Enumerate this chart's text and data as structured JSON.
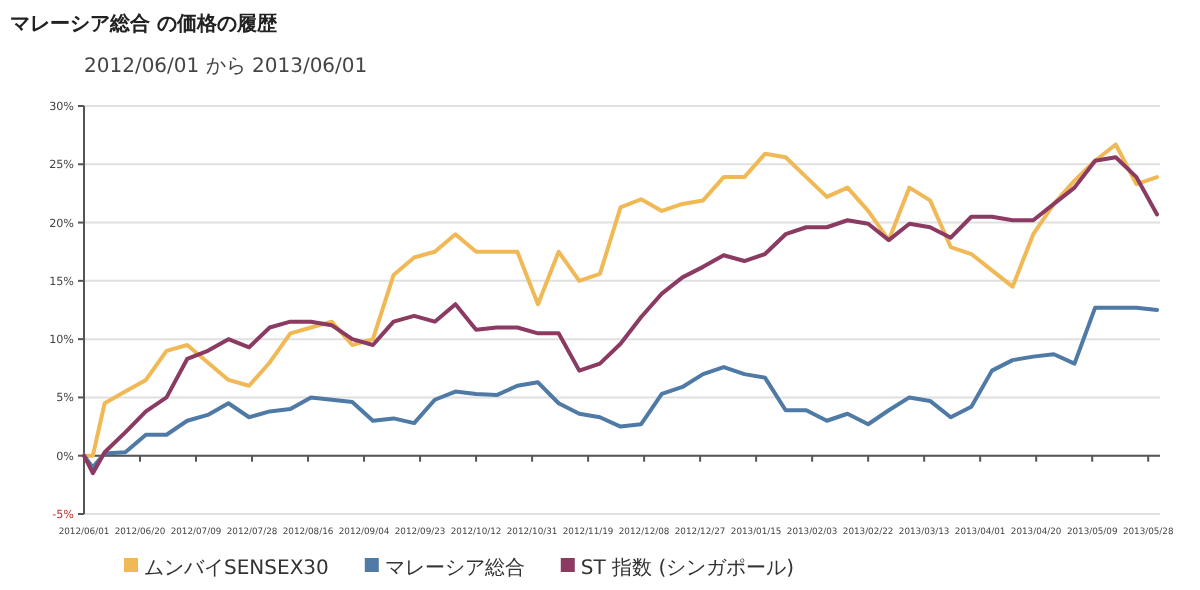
{
  "chart_data": {
    "type": "line",
    "title": "マレーシア総合 の価格の履歴",
    "subtitle": "2012/06/01 から 2013/06/01",
    "x": [
      "2012-06-01",
      "2012-06-04",
      "2012-06-08",
      "2012-06-15",
      "2012-06-22",
      "2012-06-29",
      "2012-07-06",
      "2012-07-13",
      "2012-07-20",
      "2012-07-27",
      "2012-08-03",
      "2012-08-10",
      "2012-08-17",
      "2012-08-24",
      "2012-08-31",
      "2012-09-07",
      "2012-09-14",
      "2012-09-21",
      "2012-09-28",
      "2012-10-05",
      "2012-10-12",
      "2012-10-19",
      "2012-10-26",
      "2012-11-02",
      "2012-11-09",
      "2012-11-16",
      "2012-11-23",
      "2012-11-30",
      "2012-12-07",
      "2012-12-14",
      "2012-12-21",
      "2012-12-28",
      "2013-01-04",
      "2013-01-11",
      "2013-01-18",
      "2013-01-25",
      "2013-02-01",
      "2013-02-08",
      "2013-02-15",
      "2013-02-22",
      "2013-03-01",
      "2013-03-08",
      "2013-03-15",
      "2013-03-22",
      "2013-03-29",
      "2013-04-05",
      "2013-04-12",
      "2013-04-19",
      "2013-04-26",
      "2013-05-03",
      "2013-05-10",
      "2013-05-17",
      "2013-05-24",
      "2013-05-31"
    ],
    "series": [
      {
        "name": "ムンバイSENSEX30",
        "color": "#f0b956",
        "values": [
          0,
          0,
          4.5,
          5.5,
          6.5,
          9.0,
          9.5,
          8.0,
          6.5,
          6.0,
          8.0,
          10.5,
          11.0,
          11.5,
          9.5,
          10.0,
          15.5,
          17.0,
          17.5,
          19.0,
          17.5,
          17.5,
          17.5,
          13.0,
          17.5,
          15.0,
          15.6,
          21.3,
          22.0,
          21.0,
          21.6,
          21.9,
          23.9,
          23.9,
          25.9,
          25.6,
          23.9,
          22.2,
          23.0,
          21.0,
          18.5,
          23.0,
          21.9,
          17.9,
          17.3,
          15.9,
          14.5,
          19.0,
          21.6,
          23.6,
          25.3,
          26.7,
          23.3,
          23.9
        ]
      },
      {
        "name": "マレーシア総合",
        "color": "#4f7aa5",
        "values": [
          0,
          -1.0,
          0.2,
          0.3,
          1.8,
          1.8,
          3.0,
          3.5,
          4.5,
          3.3,
          3.8,
          4.0,
          5.0,
          4.8,
          4.6,
          3.0,
          3.2,
          2.8,
          4.8,
          5.5,
          5.3,
          5.2,
          6.0,
          6.3,
          4.5,
          3.6,
          3.3,
          2.5,
          2.7,
          5.3,
          5.9,
          7.0,
          7.6,
          7.0,
          6.7,
          3.9,
          3.9,
          3.0,
          3.6,
          2.7,
          3.9,
          5.0,
          4.7,
          3.3,
          4.2,
          7.3,
          8.2,
          8.5,
          8.7,
          7.9,
          12.7,
          12.7,
          12.7,
          12.5
        ]
      },
      {
        "name": "ST 指数 (シンガポール)",
        "color": "#8b3a62",
        "values": [
          0,
          -1.5,
          0.3,
          2.0,
          3.8,
          5.0,
          8.3,
          9.0,
          10.0,
          9.3,
          11.0,
          11.5,
          11.5,
          11.2,
          10.0,
          9.5,
          11.5,
          12.0,
          11.5,
          13.0,
          10.8,
          11.0,
          11.0,
          10.5,
          10.5,
          7.3,
          7.9,
          9.6,
          11.9,
          13.9,
          15.3,
          16.2,
          17.2,
          16.7,
          17.3,
          19.0,
          19.6,
          19.6,
          20.2,
          19.9,
          18.5,
          19.9,
          19.6,
          18.7,
          20.5,
          20.5,
          20.2,
          20.2,
          21.6,
          23.0,
          25.3,
          25.6,
          23.9,
          20.7
        ]
      }
    ],
    "xlim": [
      "2012-06-01",
      "2013-06-01"
    ],
    "xticks": [
      {
        "value": "2012-06-01",
        "label": "2012/06/01"
      },
      {
        "value": "2012-06-20",
        "label": "2012/06/20"
      },
      {
        "value": "2012-07-09",
        "label": "2012/07/09"
      },
      {
        "value": "2012-07-28",
        "label": "2012/07/28"
      },
      {
        "value": "2012-08-16",
        "label": "2012/08/16"
      },
      {
        "value": "2012-09-04",
        "label": "2012/09/04"
      },
      {
        "value": "2012-09-23",
        "label": "2012/09/23"
      },
      {
        "value": "2012-10-12",
        "label": "2012/10/12"
      },
      {
        "value": "2012-10-31",
        "label": "2012/10/31"
      },
      {
        "value": "2012-11-19",
        "label": "2012/11/19"
      },
      {
        "value": "2012-12-08",
        "label": "2012/12/08"
      },
      {
        "value": "2012-12-27",
        "label": "2012/12/27"
      },
      {
        "value": "2013-01-15",
        "label": "2013/01/15"
      },
      {
        "value": "2013-02-03",
        "label": "2013/02/03"
      },
      {
        "value": "2013-02-22",
        "label": "2013/02/22"
      },
      {
        "value": "2013-03-13",
        "label": "2013/03/13"
      },
      {
        "value": "2013-04-01",
        "label": "2013/04/01"
      },
      {
        "value": "2013-04-20",
        "label": "2013/04/20"
      },
      {
        "value": "2013-05-09",
        "label": "2013/05/09"
      },
      {
        "value": "2013-05-28",
        "label": "2013/05/28"
      }
    ],
    "ylim": [
      -5,
      30
    ],
    "yticks": [
      {
        "value": -5,
        "label": "-5%"
      },
      {
        "value": 0,
        "label": "0%"
      },
      {
        "value": 5,
        "label": "5%"
      },
      {
        "value": 10,
        "label": "10%"
      },
      {
        "value": 15,
        "label": "15%"
      },
      {
        "value": 20,
        "label": "20%"
      },
      {
        "value": 25,
        "label": "25%"
      },
      {
        "value": 30,
        "label": "30%"
      }
    ],
    "grid": "y",
    "legend": "bottom"
  }
}
